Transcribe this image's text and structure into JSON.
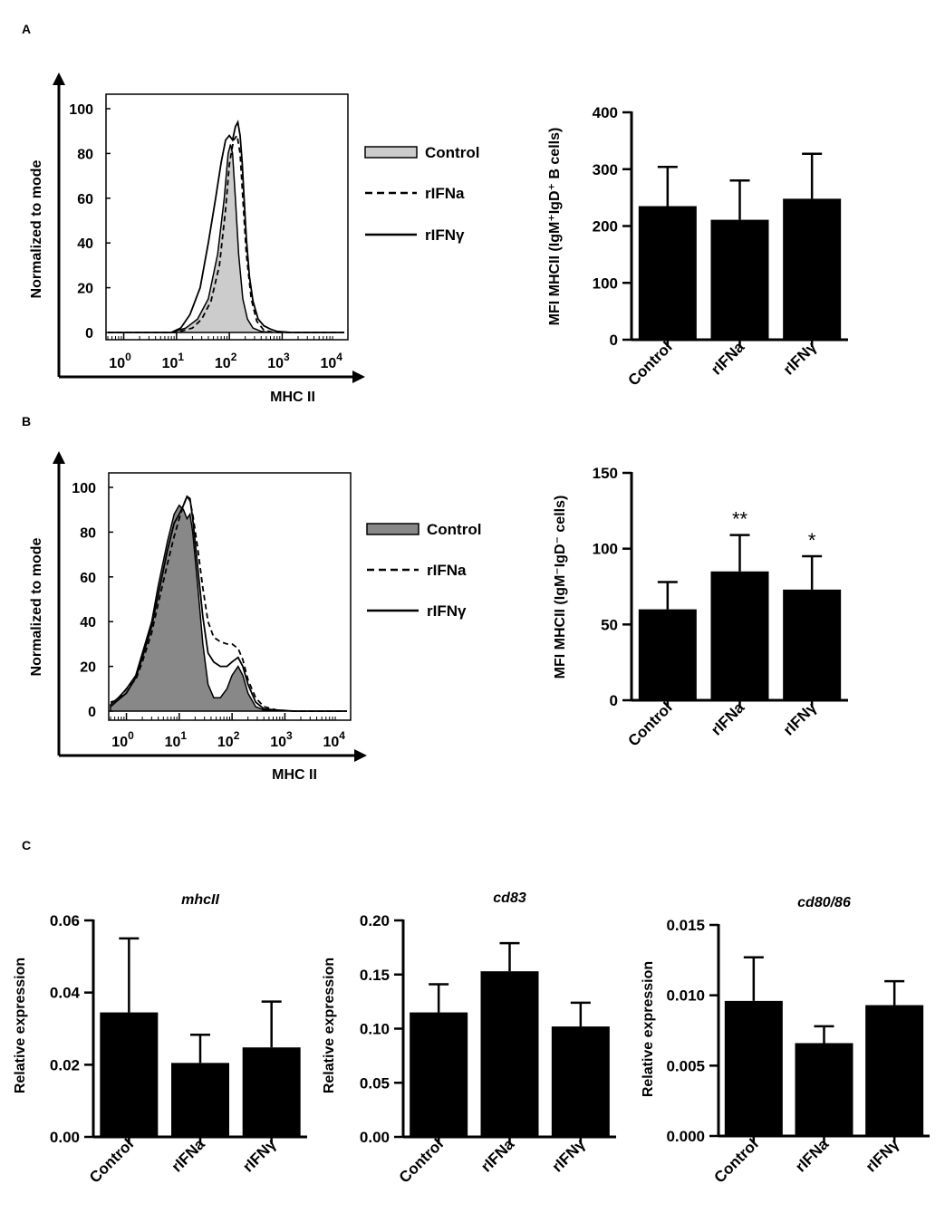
{
  "panels": {
    "a": "A",
    "b": "B",
    "c": "C"
  },
  "colors": {
    "bar": "#000000",
    "fill_a": "#cccccc",
    "fill_b": "#888888",
    "line": "#000000"
  },
  "chart_data": [
    {
      "id": "flowA",
      "panel": "A",
      "type": "line",
      "title": "",
      "xlabel": "MHC II",
      "ylabel": "Normalized to mode",
      "xscale": "log",
      "xlim": [
        0.5,
        15000
      ],
      "ylim": [
        0,
        100
      ],
      "xticks": [
        {
          "v": 1,
          "base": "10",
          "exp": "0"
        },
        {
          "v": 10,
          "base": "10",
          "exp": "1"
        },
        {
          "v": 100,
          "base": "10",
          "exp": "2"
        },
        {
          "v": 1000,
          "base": "10",
          "exp": "3"
        },
        {
          "v": 10000,
          "base": "10",
          "exp": "4"
        }
      ],
      "yticks": [
        "0",
        "20",
        "40",
        "60",
        "80",
        "100"
      ],
      "legend": {
        "position": "right",
        "entries": [
          "Control",
          "rIFNa",
          "rIFNγ"
        ]
      },
      "series": [
        {
          "name": "Control",
          "style": "filled",
          "x": [
            0.5,
            8,
            15,
            25,
            40,
            60,
            80,
            95,
            105,
            115,
            130,
            150,
            180,
            220,
            280,
            400,
            600,
            15000
          ],
          "y": [
            0,
            0,
            2,
            6,
            15,
            35,
            60,
            80,
            84,
            80,
            60,
            35,
            15,
            6,
            2,
            0.5,
            0,
            0
          ]
        },
        {
          "name": "rIFNa",
          "style": "dashed",
          "x": [
            0.5,
            10,
            20,
            30,
            45,
            65,
            85,
            100,
            120,
            140,
            160,
            180,
            210,
            260,
            330,
            450,
            700,
            15000
          ],
          "y": [
            0,
            0,
            2,
            6,
            14,
            30,
            55,
            75,
            86,
            88,
            80,
            60,
            35,
            15,
            5,
            1,
            0,
            0
          ]
        },
        {
          "name": "rIFNγ",
          "style": "solid",
          "x": [
            0.5,
            8,
            12,
            18,
            28,
            40,
            55,
            70,
            85,
            100,
            115,
            130,
            145,
            160,
            175,
            190,
            210,
            240,
            280,
            350,
            450,
            600,
            800,
            1500,
            15000
          ],
          "y": [
            0,
            0,
            2,
            8,
            20,
            40,
            60,
            76,
            86,
            88,
            86,
            92,
            94,
            88,
            76,
            60,
            42,
            25,
            14,
            6,
            3,
            1.5,
            0.5,
            0,
            0
          ]
        }
      ]
    },
    {
      "id": "barA",
      "panel": "A",
      "type": "bar",
      "title": "",
      "xlabel": "",
      "ylabel": "MFI MHCII (IgM⁺IgD⁺ B cells)",
      "categories": [
        "Control",
        "rIFNa",
        "rIFNγ"
      ],
      "values": [
        235,
        211,
        248
      ],
      "errors": [
        69,
        69,
        79
      ],
      "ylim": [
        0,
        400
      ],
      "yticks": [
        "0",
        "100",
        "200",
        "300",
        "400"
      ],
      "annotations": [
        "",
        "",
        ""
      ]
    },
    {
      "id": "flowB",
      "panel": "B",
      "type": "line",
      "title": "",
      "xlabel": "MHC II",
      "ylabel": "Normalized to mode",
      "xscale": "log",
      "xlim": [
        0.5,
        15000
      ],
      "ylim": [
        0,
        100
      ],
      "xticks": [
        {
          "v": 1,
          "base": "10",
          "exp": "0"
        },
        {
          "v": 10,
          "base": "10",
          "exp": "1"
        },
        {
          "v": 100,
          "base": "10",
          "exp": "2"
        },
        {
          "v": 1000,
          "base": "10",
          "exp": "3"
        },
        {
          "v": 10000,
          "base": "10",
          "exp": "4"
        }
      ],
      "yticks": [
        "0",
        "20",
        "40",
        "60",
        "80",
        "100"
      ],
      "legend": {
        "position": "right",
        "entries": [
          "Control",
          "rIFNa",
          "rIFNγ"
        ]
      },
      "series": [
        {
          "name": "Control",
          "style": "filled",
          "x": [
            0.5,
            0.7,
            1,
            1.5,
            2,
            3,
            4,
            6,
            8,
            10,
            12,
            14,
            16,
            18,
            22,
            28,
            35,
            45,
            60,
            80,
            100,
            130,
            160,
            200,
            280,
            400,
            700,
            1500,
            15000
          ],
          "y": [
            3,
            6,
            10,
            16,
            26,
            40,
            56,
            76,
            88,
            92,
            90,
            86,
            88,
            80,
            58,
            30,
            12,
            6,
            6,
            10,
            16,
            20,
            16,
            8,
            2,
            0.5,
            0,
            0,
            0
          ]
        },
        {
          "name": "rIFNa",
          "style": "dashed",
          "x": [
            0.5,
            0.7,
            1,
            1.5,
            2,
            3,
            4,
            6,
            8,
            10,
            12,
            14,
            16,
            18,
            22,
            28,
            35,
            45,
            60,
            80,
            100,
            130,
            160,
            200,
            280,
            400,
            700,
            1500,
            15000
          ],
          "y": [
            4,
            5,
            10,
            14,
            22,
            35,
            48,
            66,
            78,
            86,
            92,
            96,
            94,
            88,
            74,
            55,
            40,
            33,
            31,
            30,
            30,
            28,
            23,
            14,
            6,
            2,
            0.5,
            0,
            0
          ]
        },
        {
          "name": "rIFNγ",
          "style": "solid",
          "x": [
            0.5,
            0.7,
            1,
            1.5,
            2,
            3,
            4,
            6,
            8,
            10,
            12,
            14,
            16,
            18,
            22,
            28,
            35,
            45,
            60,
            80,
            100,
            130,
            160,
            200,
            280,
            400,
            700,
            1500,
            15000
          ],
          "y": [
            2,
            5,
            8,
            15,
            24,
            38,
            52,
            72,
            84,
            88,
            92,
            96,
            95,
            86,
            66,
            42,
            26,
            22,
            20,
            20,
            22,
            24,
            20,
            12,
            4,
            1,
            0.5,
            0,
            0
          ]
        }
      ]
    },
    {
      "id": "barB",
      "panel": "B",
      "type": "bar",
      "title": "",
      "xlabel": "",
      "ylabel": "MFI MHCII (IgM⁻IgD⁻ cells)",
      "categories": [
        "Control",
        "rIFNa",
        "rIFNγ"
      ],
      "values": [
        60,
        85,
        73
      ],
      "errors": [
        18,
        24,
        22
      ],
      "ylim": [
        0,
        150
      ],
      "yticks": [
        "0",
        "50",
        "100",
        "150"
      ],
      "annotations": [
        "",
        "**",
        "*"
      ]
    },
    {
      "id": "barC1",
      "panel": "C",
      "type": "bar",
      "title": "mhcII",
      "xlabel": "",
      "ylabel": "Relative expression",
      "categories": [
        "Control",
        "rIFNa",
        "rIFNγ"
      ],
      "values": [
        0.0345,
        0.0205,
        0.0248
      ],
      "errors": [
        0.0205,
        0.0078,
        0.0127
      ],
      "ylim": [
        0,
        0.06
      ],
      "yticks": [
        "0.00",
        "0.02",
        "0.04",
        "0.06"
      ],
      "annotations": [
        "",
        "",
        ""
      ]
    },
    {
      "id": "barC2",
      "panel": "C",
      "type": "bar",
      "title": "cd83",
      "xlabel": "",
      "ylabel": "Relative expression",
      "categories": [
        "Control",
        "rIFNa",
        "rIFNγ"
      ],
      "values": [
        0.115,
        0.153,
        0.102
      ],
      "errors": [
        0.026,
        0.026,
        0.022
      ],
      "ylim": [
        0,
        0.2
      ],
      "yticks": [
        "0.00",
        "0.05",
        "0.10",
        "0.15",
        "0.20"
      ],
      "annotations": [
        "",
        "",
        ""
      ]
    },
    {
      "id": "barC3",
      "panel": "C",
      "type": "bar",
      "title": "cd80/86",
      "xlabel": "",
      "ylabel": "Relative expression",
      "categories": [
        "Control",
        "rIFNa",
        "rIFNγ"
      ],
      "values": [
        0.0096,
        0.0066,
        0.0093
      ],
      "errors": [
        0.0031,
        0.0012,
        0.0017
      ],
      "ylim": [
        0,
        0.015
      ],
      "yticks": [
        "0.000",
        "0.005",
        "0.010",
        "0.015"
      ],
      "annotations": [
        "",
        "",
        ""
      ]
    }
  ]
}
